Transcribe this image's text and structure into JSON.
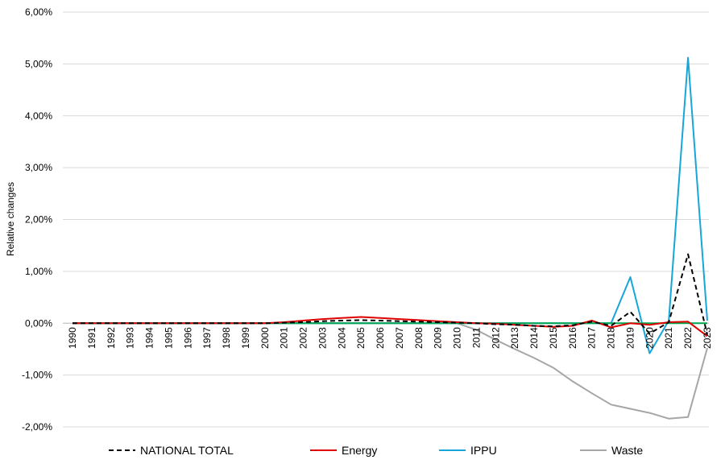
{
  "chart_data": {
    "type": "line",
    "title": "",
    "xlabel": "",
    "ylabel": "Relative changes",
    "ylim": [
      -2,
      6
    ],
    "y_ticks": [
      "6,00%",
      "5,00%",
      "4,00%",
      "3,00%",
      "2,00%",
      "1,00%",
      "0,00%",
      "-1,00%",
      "-2,00%"
    ],
    "y_tick_values": [
      6,
      5,
      4,
      3,
      2,
      1,
      0,
      -1,
      -2
    ],
    "grid": true,
    "legend_position": "bottom",
    "x": [
      "1990",
      "1991",
      "1992",
      "1993",
      "1994",
      "1995",
      "1996",
      "1997",
      "1998",
      "1999",
      "2000",
      "2001",
      "2002",
      "2003",
      "2004",
      "2005",
      "2006",
      "2007",
      "2008",
      "2009",
      "2010",
      "2011",
      "2012",
      "2013",
      "2014",
      "2015",
      "2016",
      "2017",
      "2018",
      "2019",
      "2020",
      "2021",
      "2022",
      "2023"
    ],
    "series": [
      {
        "name": "NATIONAL TOTAL",
        "color": "#000000",
        "dash": true,
        "values": [
          0,
          0,
          0,
          0,
          0,
          0,
          0,
          0,
          0,
          0,
          0,
          0.01,
          0.02,
          0.04,
          0.05,
          0.06,
          0.05,
          0.04,
          0.03,
          0.02,
          0.01,
          0,
          -0.02,
          -0.03,
          -0.05,
          -0.06,
          -0.04,
          0.03,
          -0.05,
          0.22,
          -0.2,
          0.02,
          1.33,
          -0.22
        ]
      },
      {
        "name": "Energy",
        "color": "#e00000",
        "dash": false,
        "values": [
          0,
          0,
          0,
          0,
          0,
          0,
          0,
          0,
          0,
          0,
          0,
          0.02,
          0.05,
          0.08,
          0.1,
          0.12,
          0.1,
          0.08,
          0.06,
          0.04,
          0.02,
          0,
          -0.01,
          -0.03,
          -0.05,
          -0.07,
          -0.05,
          0.05,
          -0.08,
          0,
          -0.03,
          0.02,
          0.03,
          -0.25
        ]
      },
      {
        "name": "IPPU",
        "color": "#17a6d9",
        "dash": false,
        "values": [
          0,
          0,
          0,
          0,
          0,
          0,
          0,
          0,
          0,
          0,
          0,
          0,
          0,
          0,
          0,
          0,
          0,
          0,
          0,
          0,
          0,
          0,
          0,
          0,
          0,
          0,
          0,
          0,
          0,
          0.89,
          -0.58,
          0.05,
          5.12,
          0.05
        ]
      },
      {
        "name": "Waste",
        "color": "#a6a6a6",
        "dash": false,
        "values": [
          0,
          0,
          0,
          0,
          0,
          0,
          0,
          0,
          0,
          0,
          0,
          0,
          0,
          0,
          0,
          0,
          0,
          0,
          0,
          0,
          0,
          -0.13,
          -0.32,
          -0.5,
          -0.67,
          -0.86,
          -1.12,
          -1.35,
          -1.57,
          -1.65,
          -1.73,
          -1.84,
          -1.81,
          -0.48
        ]
      },
      {
        "name": "",
        "color": "#00a550",
        "dash": false,
        "values": [
          0,
          0,
          0,
          0,
          0,
          0,
          0,
          0,
          0,
          0,
          0,
          0,
          0,
          0,
          0,
          0,
          0,
          0,
          0,
          0,
          0,
          0,
          0,
          0,
          0,
          0,
          0,
          0,
          0,
          0,
          0,
          0,
          0,
          0
        ]
      }
    ]
  }
}
